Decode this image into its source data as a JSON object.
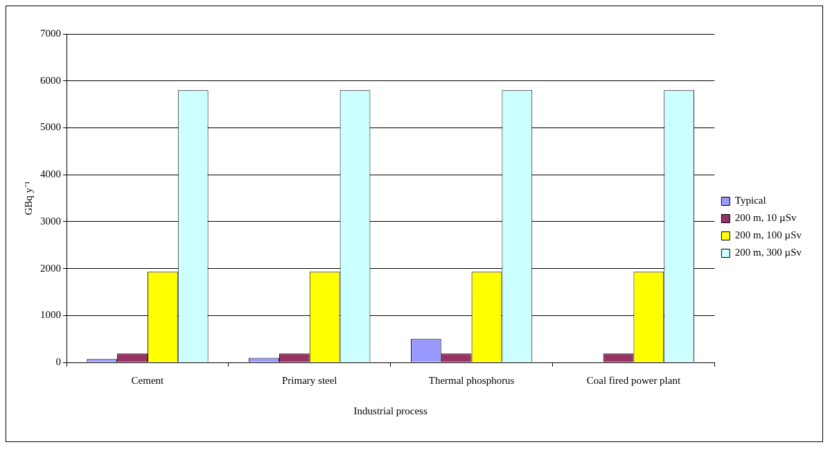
{
  "chart_data": {
    "type": "bar",
    "xlabel": "Industrial process",
    "ylabel": "GBq y⁻¹",
    "categories": [
      "Cement",
      "Primary steel",
      "Thermal phosphorus",
      "Coal fired power plant"
    ],
    "series": [
      {
        "name": "Typical",
        "color": "#9999ff",
        "values": [
          70,
          95,
          500,
          null
        ]
      },
      {
        "name": "200 m, 10 µSv",
        "color": "#993366",
        "values": [
          190,
          190,
          190,
          190
        ]
      },
      {
        "name": "200 m, 100 µSv",
        "color": "#ffff00",
        "values": [
          1930,
          1930,
          1930,
          1930
        ]
      },
      {
        "name": "200 m, 300 µSv",
        "color": "#ccffff",
        "values": [
          5800,
          5800,
          5800,
          5800
        ]
      }
    ],
    "ylim": [
      0,
      7000
    ],
    "yticks": [
      0,
      1000,
      2000,
      3000,
      4000,
      5000,
      6000,
      7000
    ],
    "grid": "y",
    "legend": "right"
  }
}
